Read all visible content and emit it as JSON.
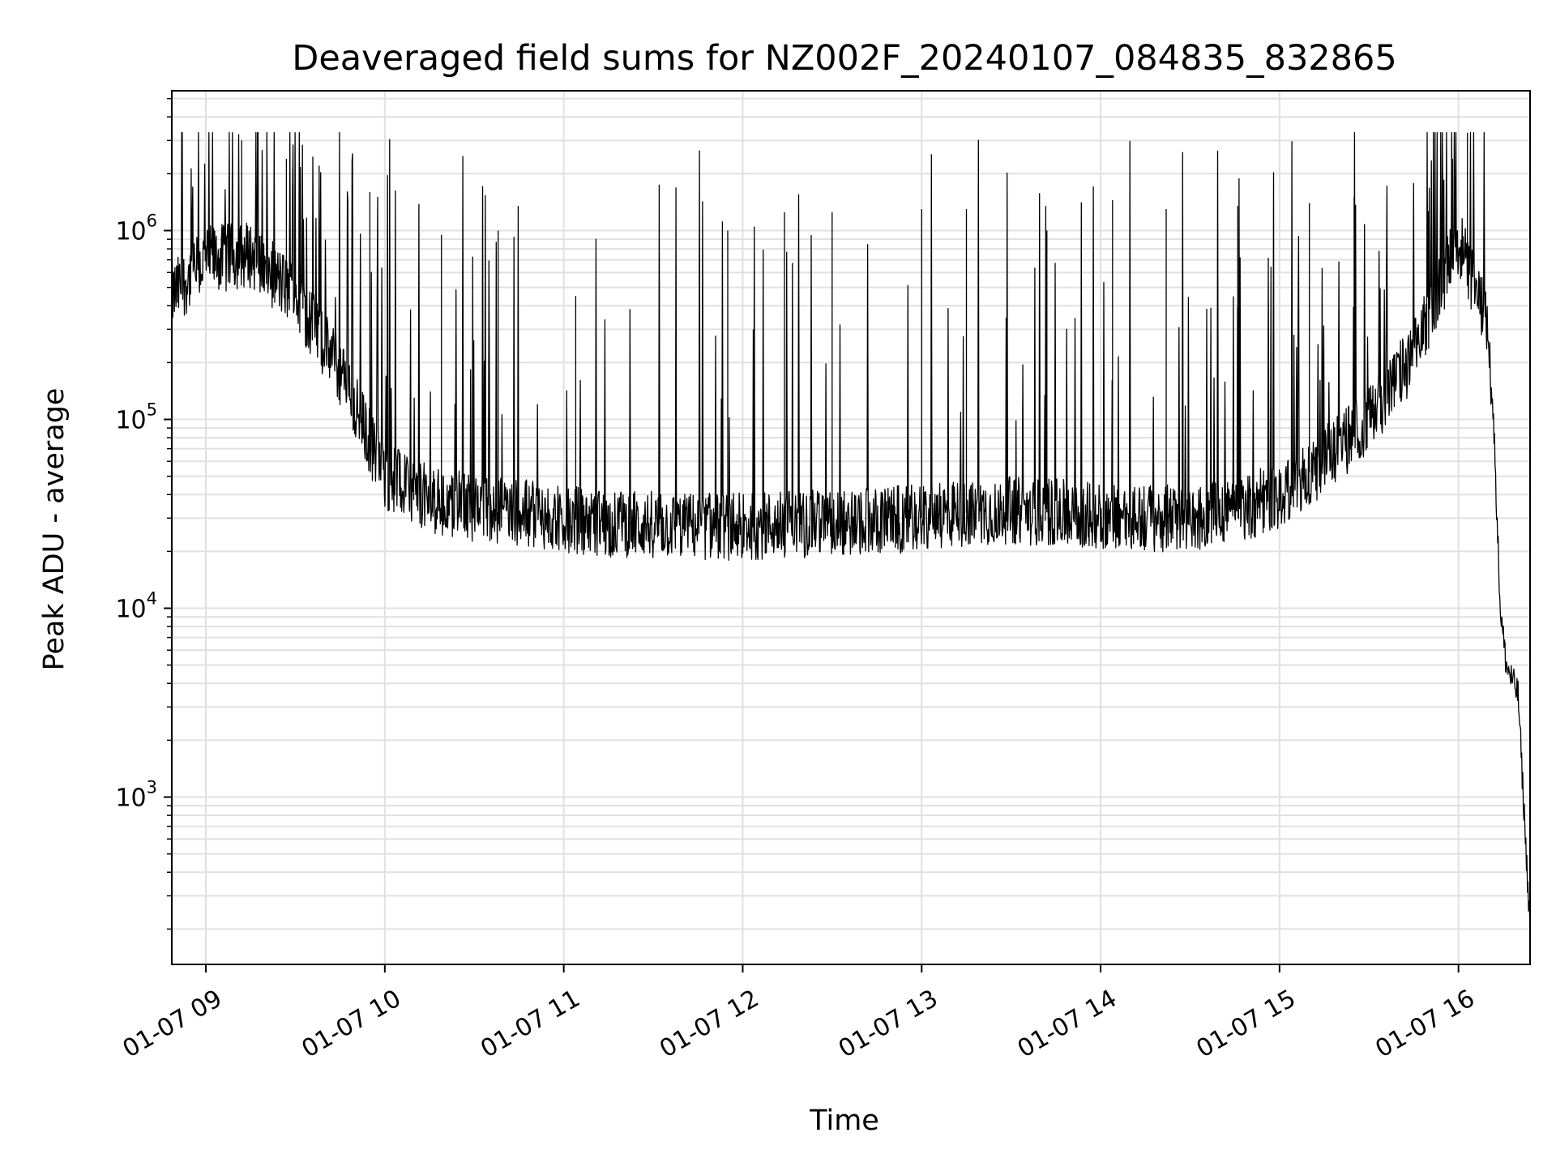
{
  "chart_data": {
    "type": "line",
    "title": "Deaveraged field sums for NZ002F_20240107_084835_832865",
    "xlabel": "Time",
    "ylabel": "Peak ADU - average",
    "yscale": "log",
    "ylim": [
      130,
      5500000
    ],
    "xlim": [
      "2024-01-07 08:48:35",
      "2024-01-07 16:24:00"
    ],
    "grid": true,
    "line_color": "#000000",
    "x_ticks": [
      {
        "value": "2024-01-07 09:00",
        "label": "01-07 09"
      },
      {
        "value": "2024-01-07 10:00",
        "label": "01-07 10"
      },
      {
        "value": "2024-01-07 11:00",
        "label": "01-07 11"
      },
      {
        "value": "2024-01-07 12:00",
        "label": "01-07 12"
      },
      {
        "value": "2024-01-07 13:00",
        "label": "01-07 13"
      },
      {
        "value": "2024-01-07 14:00",
        "label": "01-07 14"
      },
      {
        "value": "2024-01-07 15:00",
        "label": "01-07 15"
      },
      {
        "value": "2024-01-07 16:00",
        "label": "01-07 16"
      }
    ],
    "y_ticks": [
      {
        "value": 1000,
        "base": "10",
        "exp": "3"
      },
      {
        "value": 10000,
        "base": "10",
        "exp": "4"
      },
      {
        "value": 100000,
        "base": "10",
        "exp": "5"
      },
      {
        "value": 1000000,
        "base": "10",
        "exp": "6"
      }
    ],
    "series": [
      {
        "x": [
          "2024-01-07 08:48:35",
          "2024-01-07 09:00",
          "2024-01-07 09:15",
          "2024-01-07 09:30",
          "2024-01-07 09:45",
          "2024-01-07 10:00",
          "2024-01-07 10:15",
          "2024-01-07 10:30",
          "2024-01-07 10:45",
          "2024-01-07 11:00",
          "2024-01-07 11:15",
          "2024-01-07 11:30",
          "2024-01-07 11:45",
          "2024-01-07 12:00",
          "2024-01-07 12:15",
          "2024-01-07 12:30",
          "2024-01-07 12:45",
          "2024-01-07 13:00",
          "2024-01-07 13:15",
          "2024-01-07 13:30",
          "2024-01-07 13:45",
          "2024-01-07 14:00",
          "2024-01-07 14:15",
          "2024-01-07 14:30",
          "2024-01-07 14:45",
          "2024-01-07 15:00",
          "2024-01-07 15:15",
          "2024-01-07 15:30",
          "2024-01-07 15:45",
          "2024-01-07 16:00",
          "2024-01-07 16:10",
          "2024-01-07 16:12",
          "2024-01-07 16:14",
          "2024-01-07 16:16",
          "2024-01-07 16:20",
          "2024-01-07 16:24"
        ],
        "y": [
          450000,
          700000,
          750000,
          450000,
          180000,
          50000,
          38000,
          34000,
          32000,
          30000,
          28000,
          28000,
          27000,
          27000,
          28000,
          28000,
          29000,
          30000,
          32000,
          33000,
          32000,
          31000,
          30000,
          30000,
          32000,
          40000,
          60000,
          100000,
          220000,
          900000,
          300000,
          80000,
          10000,
          5000,
          3500,
          200
        ],
        "spikes": [
          {
            "x": "2024-01-07 09:12",
            "y": 3000000
          },
          {
            "x": "2024-01-07 09:27",
            "y": 2400000
          },
          {
            "x": "2024-01-07 09:55",
            "y": 1600000
          },
          {
            "x": "2024-01-07 10:19",
            "y": 950000
          },
          {
            "x": "2024-01-07 10:38",
            "y": 1000000
          },
          {
            "x": "2024-01-07 11:04",
            "y": 450000
          },
          {
            "x": "2024-01-07 11:32",
            "y": 1250000
          },
          {
            "x": "2024-01-07 11:55",
            "y": 1000000
          },
          {
            "x": "2024-01-07 12:14",
            "y": 1250000
          },
          {
            "x": "2024-01-07 12:30",
            "y": 1250000
          },
          {
            "x": "2024-01-07 13:00",
            "y": 1300000
          },
          {
            "x": "2024-01-07 13:15",
            "y": 1300000
          },
          {
            "x": "2024-01-07 13:42",
            "y": 1000000
          },
          {
            "x": "2024-01-07 14:04",
            "y": 1450000
          },
          {
            "x": "2024-01-07 14:22",
            "y": 1300000
          },
          {
            "x": "2024-01-07 14:46",
            "y": 1350000
          },
          {
            "x": "2024-01-07 15:10",
            "y": 1400000
          },
          {
            "x": "2024-01-07 15:25",
            "y": 1500000
          },
          {
            "x": "2024-01-07 15:58",
            "y": 2400000
          },
          {
            "x": "2024-01-07 16:03",
            "y": 3300000
          }
        ]
      }
    ]
  }
}
